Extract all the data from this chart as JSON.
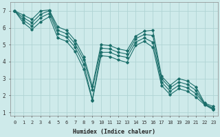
{
  "xlabel": "Humidex (Indice chaleur)",
  "ylabel": "",
  "bg_color": "#ceeaea",
  "line_color": "#1a6e6a",
  "grid_color": "#afd4d4",
  "xlim": [
    -0.5,
    23.5
  ],
  "ylim": [
    0.8,
    7.5
  ],
  "xticks": [
    0,
    1,
    2,
    3,
    4,
    5,
    6,
    7,
    8,
    9,
    10,
    11,
    12,
    13,
    14,
    15,
    16,
    17,
    18,
    19,
    20,
    21,
    22,
    23
  ],
  "yticks": [
    1,
    2,
    3,
    4,
    5,
    6,
    7
  ],
  "series": [
    {
      "x": [
        0,
        1,
        2,
        3,
        4,
        5,
        6,
        7,
        8,
        9,
        10,
        11,
        12,
        13,
        14,
        15,
        16,
        17,
        18,
        19,
        20,
        21,
        22,
        23
      ],
      "y": [
        7.0,
        6.75,
        6.5,
        7.0,
        7.05,
        6.05,
        5.85,
        5.25,
        4.3,
        2.55,
        5.0,
        4.95,
        4.75,
        4.65,
        5.5,
        5.8,
        5.85,
        3.15,
        2.6,
        3.0,
        2.85,
        2.5,
        1.55,
        1.35
      ]
    },
    {
      "x": [
        0,
        1,
        2,
        3,
        4,
        5,
        6,
        7,
        8,
        9,
        10,
        11,
        12,
        13,
        14,
        15,
        16,
        17,
        18,
        19,
        20,
        21,
        22,
        23
      ],
      "y": [
        7.0,
        6.6,
        6.3,
        6.8,
        7.0,
        5.85,
        5.65,
        5.05,
        4.1,
        2.35,
        4.8,
        4.75,
        4.55,
        4.45,
        5.35,
        5.6,
        5.55,
        3.0,
        2.45,
        2.8,
        2.65,
        2.3,
        1.5,
        1.25
      ]
    },
    {
      "x": [
        0,
        1,
        2,
        3,
        4,
        5,
        6,
        7,
        8,
        9,
        10,
        11,
        12,
        13,
        14,
        15,
        16,
        17,
        18,
        19,
        20,
        21,
        22,
        23
      ],
      "y": [
        7.0,
        6.45,
        6.1,
        6.6,
        6.85,
        5.65,
        5.45,
        4.85,
        3.85,
        1.75,
        4.55,
        4.55,
        4.35,
        4.25,
        5.15,
        5.4,
        5.15,
        2.8,
        2.25,
        2.6,
        2.45,
        2.1,
        1.5,
        1.2
      ]
    },
    {
      "x": [
        0,
        1,
        2,
        3,
        4,
        5,
        6,
        7,
        8,
        9,
        10,
        11,
        12,
        13,
        14,
        15,
        16,
        17,
        18,
        19,
        20,
        21,
        22,
        23
      ],
      "y": [
        7.0,
        6.3,
        5.9,
        6.35,
        6.65,
        5.4,
        5.2,
        4.6,
        3.55,
        1.7,
        4.35,
        4.3,
        4.1,
        3.95,
        4.95,
        5.2,
        4.85,
        2.6,
        2.05,
        2.4,
        2.25,
        1.9,
        1.45,
        1.15
      ]
    }
  ]
}
